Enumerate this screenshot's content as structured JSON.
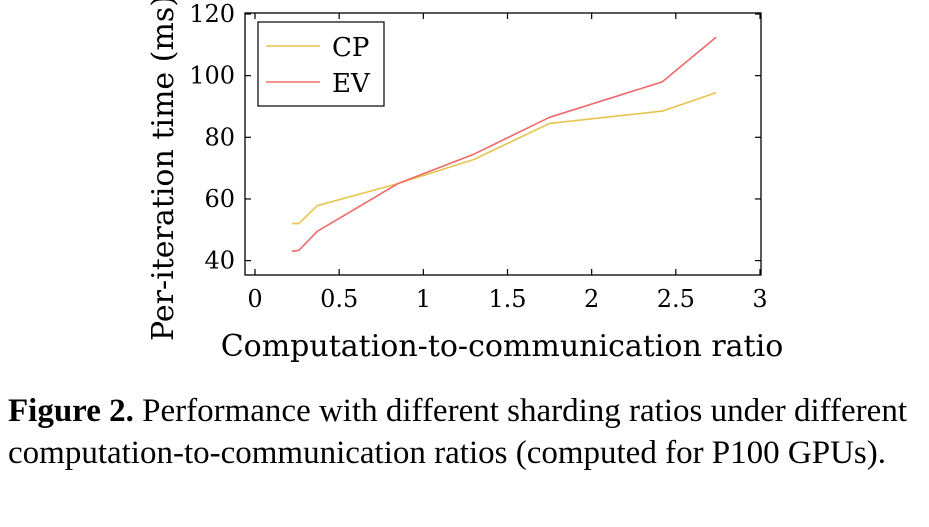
{
  "chart_data": {
    "type": "line",
    "xlabel": "Computation-to-communication ratio",
    "ylabel": "Per-iteration time (ms)",
    "xlim": [
      0,
      3
    ],
    "ylim": [
      35,
      120
    ],
    "xticks": [
      "0",
      "0.5",
      "1",
      "1.5",
      "2",
      "2.5",
      "3"
    ],
    "yticks": [
      "40",
      "60",
      "80",
      "100",
      "120"
    ],
    "grid": false,
    "legend_position": "top-left",
    "series": [
      {
        "name": "CP",
        "color": "#e6c44e",
        "points": [
          [
            0.22,
            52
          ],
          [
            0.26,
            52
          ],
          [
            0.37,
            57.8
          ],
          [
            0.85,
            65
          ],
          [
            1.3,
            72.8
          ],
          [
            1.75,
            84.5
          ],
          [
            2.42,
            88.5
          ],
          [
            2.74,
            94.5
          ]
        ]
      },
      {
        "name": "EV",
        "color": "#ef6b6b",
        "points": [
          [
            0.22,
            43
          ],
          [
            0.26,
            43.3
          ],
          [
            0.37,
            49.5
          ],
          [
            0.85,
            65
          ],
          [
            1.3,
            74.5
          ],
          [
            1.75,
            86.5
          ],
          [
            2.42,
            98
          ],
          [
            2.74,
            112.5
          ]
        ]
      }
    ]
  },
  "caption": {
    "label": "Figure 2.",
    "text": " Performance with different sharding ratios under different computation-to-communication ratios (computed for P100 GPUs)."
  }
}
